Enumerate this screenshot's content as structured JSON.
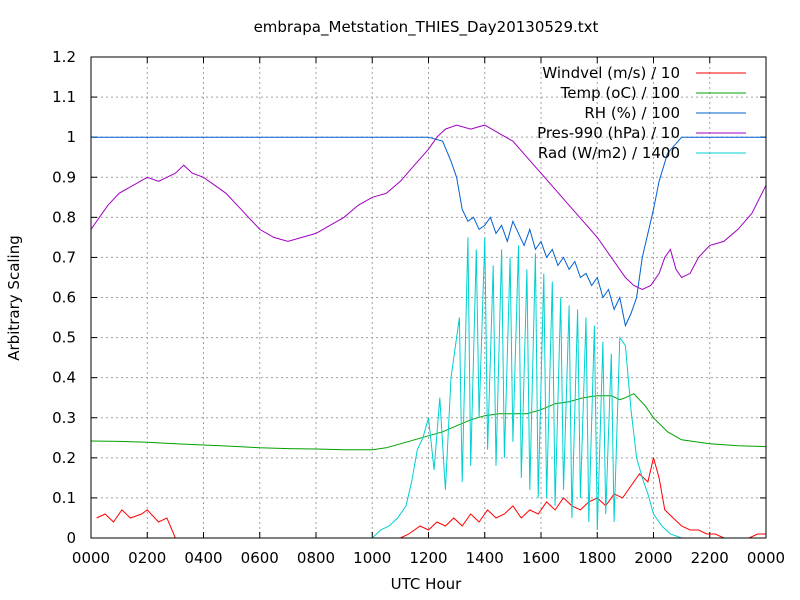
{
  "chart_data": {
    "type": "line",
    "title": "embrapa_Metstation_THIES_Day20130529.txt",
    "xlabel": "UTC Hour",
    "ylabel": "Arbitrary Scaling",
    "ylim": [
      0,
      1.2
    ],
    "y_ticks": [
      "0",
      "0.1",
      "0.2",
      "0.3",
      "0.4",
      "0.5",
      "0.6",
      "0.7",
      "0.8",
      "0.9",
      "1",
      "1.1",
      "1.2"
    ],
    "xlim": [
      0,
      24
    ],
    "x_ticks": [
      "0000",
      "0200",
      "0400",
      "0600",
      "0800",
      "1000",
      "1200",
      "1400",
      "1600",
      "1800",
      "2000",
      "2200",
      "0000"
    ],
    "grid": true,
    "legend_position": "top-right",
    "series": [
      {
        "name": "Windvel (m/s) / 10",
        "color": "#ff0000",
        "x": [
          0.2,
          0.5,
          0.8,
          1.1,
          1.4,
          1.8,
          2.0,
          2.4,
          2.7,
          3.0,
          3.3,
          3.6,
          4.0,
          5.0,
          6.0,
          7.0,
          8.0,
          9.0,
          10.0,
          10.5,
          11.0,
          11.3,
          11.7,
          12.0,
          12.3,
          12.6,
          12.9,
          13.2,
          13.5,
          13.8,
          14.1,
          14.4,
          14.7,
          15.0,
          15.3,
          15.6,
          15.9,
          16.2,
          16.5,
          16.8,
          17.1,
          17.4,
          17.7,
          18.0,
          18.3,
          18.6,
          18.9,
          19.2,
          19.5,
          19.8,
          20.0,
          20.2,
          20.4,
          20.7,
          21.0,
          21.3,
          21.6,
          21.9,
          22.2,
          22.5,
          22.8,
          23.1,
          23.4,
          23.7,
          24.0
        ],
        "y": [
          0.05,
          0.06,
          0.04,
          0.07,
          0.05,
          0.06,
          0.07,
          0.04,
          0.05,
          0.0,
          0.0,
          0.0,
          0.0,
          0.0,
          0.0,
          0.0,
          0.0,
          0.0,
          0.0,
          0.0,
          0.0,
          0.01,
          0.03,
          0.02,
          0.04,
          0.03,
          0.05,
          0.03,
          0.06,
          0.04,
          0.07,
          0.05,
          0.06,
          0.08,
          0.05,
          0.07,
          0.06,
          0.09,
          0.07,
          0.1,
          0.08,
          0.07,
          0.09,
          0.1,
          0.08,
          0.11,
          0.1,
          0.13,
          0.16,
          0.14,
          0.2,
          0.15,
          0.07,
          0.05,
          0.03,
          0.02,
          0.02,
          0.01,
          0.01,
          0.0,
          0.0,
          0.0,
          0.0,
          0.01,
          0.01
        ]
      },
      {
        "name": "Temp (oC) / 100",
        "color": "#00a000",
        "x": [
          0,
          1,
          2,
          3,
          4,
          5,
          6,
          7,
          8,
          9,
          10,
          10.5,
          11,
          11.5,
          12,
          12.5,
          13,
          13.5,
          14,
          14.5,
          15,
          15.5,
          16,
          16.5,
          17,
          17.5,
          18,
          18.5,
          18.8,
          19.0,
          19.3,
          19.7,
          20.0,
          20.5,
          21,
          21.5,
          22,
          23,
          24
        ],
        "y": [
          0.242,
          0.241,
          0.239,
          0.235,
          0.232,
          0.229,
          0.225,
          0.223,
          0.222,
          0.22,
          0.22,
          0.225,
          0.235,
          0.245,
          0.255,
          0.265,
          0.28,
          0.295,
          0.305,
          0.31,
          0.31,
          0.31,
          0.32,
          0.335,
          0.34,
          0.35,
          0.355,
          0.355,
          0.345,
          0.35,
          0.36,
          0.33,
          0.3,
          0.265,
          0.245,
          0.24,
          0.235,
          0.23,
          0.228
        ]
      },
      {
        "name": "RH (%) / 100",
        "color": "#0060d0",
        "x": [
          0,
          2,
          4,
          6,
          8,
          10,
          11,
          12,
          12.5,
          12.8,
          13.0,
          13.2,
          13.4,
          13.6,
          13.8,
          14.0,
          14.2,
          14.4,
          14.6,
          14.8,
          15.0,
          15.2,
          15.4,
          15.6,
          15.8,
          16.0,
          16.2,
          16.4,
          16.6,
          16.8,
          17.0,
          17.2,
          17.4,
          17.6,
          17.8,
          18.0,
          18.2,
          18.4,
          18.6,
          18.8,
          19.0,
          19.2,
          19.4,
          19.6,
          19.8,
          20.0,
          20.2,
          20.5,
          21,
          22,
          23,
          24
        ],
        "y": [
          1.0,
          1.0,
          1.0,
          1.0,
          1.0,
          1.0,
          1.0,
          1.0,
          0.99,
          0.94,
          0.9,
          0.82,
          0.79,
          0.8,
          0.77,
          0.78,
          0.8,
          0.76,
          0.78,
          0.74,
          0.79,
          0.76,
          0.73,
          0.77,
          0.72,
          0.74,
          0.7,
          0.72,
          0.68,
          0.7,
          0.67,
          0.69,
          0.65,
          0.66,
          0.63,
          0.65,
          0.6,
          0.62,
          0.57,
          0.6,
          0.53,
          0.56,
          0.6,
          0.7,
          0.76,
          0.82,
          0.89,
          0.96,
          1.0,
          1.0,
          1.0,
          1.0
        ]
      },
      {
        "name": "Pres-990 (hPa) / 10",
        "color": "#a000c0",
        "x": [
          0,
          0.3,
          0.6,
          1.0,
          1.5,
          2.0,
          2.4,
          2.7,
          3.0,
          3.3,
          3.6,
          4.0,
          4.4,
          4.8,
          5.2,
          5.6,
          6.0,
          6.5,
          7.0,
          7.5,
          8.0,
          8.5,
          9.0,
          9.5,
          10.0,
          10.5,
          11.0,
          11.5,
          12.0,
          12.3,
          12.6,
          13.0,
          13.5,
          14.0,
          14.5,
          15.0,
          15.5,
          16.0,
          16.5,
          17.0,
          17.5,
          18.0,
          18.5,
          19.0,
          19.3,
          19.6,
          19.9,
          20.2,
          20.4,
          20.6,
          20.8,
          21.0,
          21.3,
          21.6,
          22.0,
          22.5,
          23.0,
          23.5,
          24.0
        ],
        "y": [
          0.77,
          0.8,
          0.83,
          0.86,
          0.88,
          0.9,
          0.89,
          0.9,
          0.91,
          0.93,
          0.91,
          0.9,
          0.88,
          0.86,
          0.83,
          0.8,
          0.77,
          0.75,
          0.74,
          0.75,
          0.76,
          0.78,
          0.8,
          0.83,
          0.85,
          0.86,
          0.89,
          0.93,
          0.97,
          1.0,
          1.02,
          1.03,
          1.02,
          1.03,
          1.01,
          0.99,
          0.95,
          0.91,
          0.87,
          0.83,
          0.79,
          0.75,
          0.7,
          0.65,
          0.63,
          0.62,
          0.63,
          0.66,
          0.7,
          0.72,
          0.67,
          0.65,
          0.66,
          0.7,
          0.73,
          0.74,
          0.77,
          0.81,
          0.88
        ]
      },
      {
        "name": "Rad (W/m2) / 1400",
        "color": "#00d0d0",
        "x": [
          0,
          5,
          10,
          10.3,
          10.6,
          10.9,
          11.2,
          11.4,
          11.6,
          11.8,
          12.0,
          12.2,
          12.4,
          12.6,
          12.8,
          13.0,
          13.1,
          13.2,
          13.4,
          13.5,
          13.7,
          13.8,
          14.0,
          14.1,
          14.3,
          14.4,
          14.6,
          14.7,
          14.9,
          15.0,
          15.2,
          15.3,
          15.5,
          15.6,
          15.8,
          15.9,
          16.1,
          16.2,
          16.4,
          16.5,
          16.7,
          16.8,
          17.0,
          17.1,
          17.3,
          17.4,
          17.6,
          17.7,
          17.9,
          18.0,
          18.2,
          18.3,
          18.5,
          18.6,
          18.8,
          19.0,
          19.2,
          19.4,
          19.6,
          19.8,
          20.0,
          20.3,
          20.6,
          21.0,
          22,
          23,
          24
        ],
        "y": [
          0.0,
          0.0,
          0.0,
          0.02,
          0.03,
          0.05,
          0.08,
          0.14,
          0.22,
          0.25,
          0.3,
          0.17,
          0.35,
          0.12,
          0.4,
          0.5,
          0.55,
          0.14,
          0.75,
          0.18,
          0.72,
          0.3,
          0.75,
          0.22,
          0.68,
          0.18,
          0.72,
          0.2,
          0.7,
          0.24,
          0.73,
          0.15,
          0.67,
          0.12,
          0.71,
          0.1,
          0.66,
          0.1,
          0.64,
          0.08,
          0.6,
          0.12,
          0.58,
          0.05,
          0.57,
          0.1,
          0.55,
          0.04,
          0.53,
          0.02,
          0.49,
          0.06,
          0.46,
          0.04,
          0.5,
          0.48,
          0.32,
          0.2,
          0.15,
          0.11,
          0.06,
          0.03,
          0.01,
          0.0,
          0.0,
          0.0,
          0.0
        ]
      }
    ]
  }
}
